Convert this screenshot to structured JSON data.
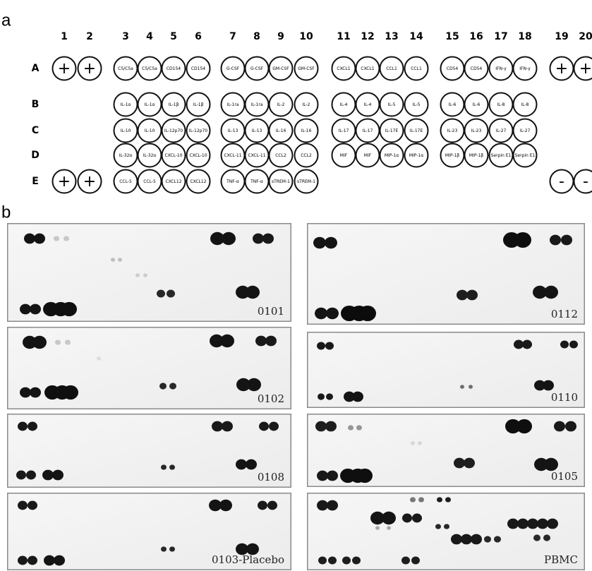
{
  "panel_a": {
    "label": "a",
    "columns": [
      "1",
      "2",
      "3",
      "4",
      "5",
      "6",
      "7",
      "8",
      "9",
      "10",
      "11",
      "12",
      "13",
      "14",
      "15",
      "16",
      "17",
      "18",
      "19",
      "20"
    ],
    "rows": [
      {
        "label": "A",
        "cells": [
          "+",
          "+",
          "C5/C5a",
          "C5/C5a",
          "CD154",
          "CD154",
          "G-CSF",
          "G-CSF",
          "GM-CSF",
          "GM-CSF",
          "CXCL1",
          "CXCL1",
          "CCL1",
          "CCL1",
          "CD54",
          "CD54",
          "IFN-γ",
          "IFN-γ",
          "+",
          "+"
        ]
      },
      {
        "label": "B",
        "cells": [
          null,
          null,
          "IL-1α",
          "IL-1α",
          "IL-1β",
          "IL-1β",
          "IL-1ra",
          "IL-1ra",
          "IL-2",
          "IL-2",
          "IL-4",
          "IL-4",
          "IL-5",
          "IL-5",
          "IL-6",
          "IL-6",
          "IL-8",
          "IL-8",
          null,
          null
        ]
      },
      {
        "label": "C",
        "cells": [
          null,
          null,
          "IL-10",
          "IL-10",
          "IL-12p70",
          "IL-12p70",
          "IL-13",
          "IL-13",
          "IL-16",
          "IL-16",
          "IL-17",
          "IL-17",
          "IL-17E",
          "IL-17E",
          "IL-23",
          "IL-23",
          "IL-27",
          "IL-27",
          null,
          null
        ]
      },
      {
        "label": "D",
        "cells": [
          null,
          null,
          "IL-32α",
          "IL-32α",
          "CXCL-10",
          "CXCL-10",
          "CXCL-11",
          "CXCL-11",
          "CCL2",
          "CCL2",
          "MIF",
          "MIF",
          "MIP-1α",
          "MIP-1α",
          "MIP-1β",
          "MIP-1β",
          "Serpin E1",
          "Serpin E1",
          null,
          null
        ]
      },
      {
        "label": "E",
        "cells": [
          "+",
          "+",
          "CCL-5",
          "CCL-5",
          "CXCL12",
          "CXCL12",
          "TNF-α",
          "TNF-α",
          "sTREM-1",
          "sTREM-1",
          null,
          null,
          null,
          null,
          null,
          null,
          null,
          null,
          "-",
          "-"
        ]
      }
    ]
  },
  "panel_b": {
    "label": "b",
    "blots": [
      {
        "label": "0101"
      },
      {
        "label": "0102"
      },
      {
        "label": "0108"
      },
      {
        "label": "0103-Placebo"
      },
      {
        "label": "0112"
      },
      {
        "label": "0110"
      },
      {
        "label": "0105"
      },
      {
        "label": "PBMC"
      }
    ]
  }
}
